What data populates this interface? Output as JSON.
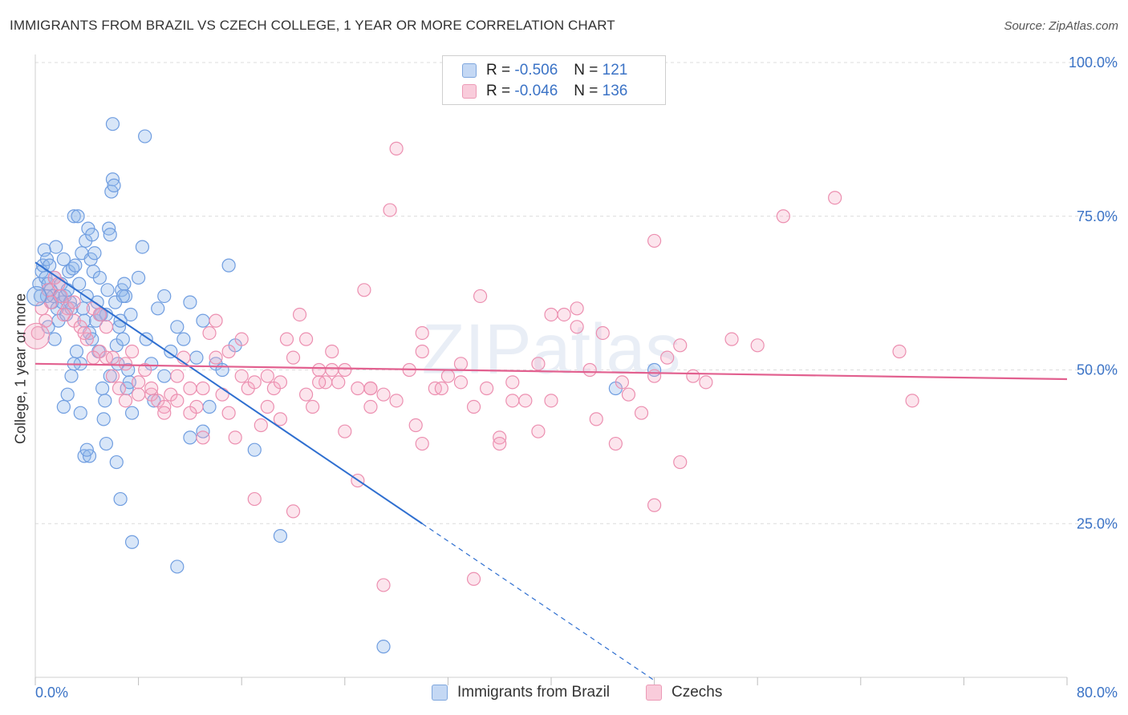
{
  "title": "IMMIGRANTS FROM BRAZIL VS CZECH COLLEGE, 1 YEAR OR MORE CORRELATION CHART",
  "source": "Source: ZipAtlas.com",
  "watermark": "ZIPatlas",
  "legend": {
    "r_label": "R =",
    "n_label": "N =",
    "rows": [
      {
        "r": "-0.506",
        "n": "121"
      },
      {
        "r": "-0.046",
        "n": "136"
      }
    ]
  },
  "chart_data": {
    "type": "scatter",
    "title": "IMMIGRANTS FROM BRAZIL VS CZECH COLLEGE, 1 YEAR OR MORE CORRELATION CHART",
    "xlabel": "",
    "ylabel": "College, 1 year or more",
    "xlim": [
      0,
      80
    ],
    "ylim": [
      0,
      100
    ],
    "x_tick_labels": [
      "0.0%",
      "80.0%"
    ],
    "y_tick_labels": [
      "100.0%",
      "75.0%",
      "50.0%",
      "25.0%"
    ],
    "y_ticks": [
      100,
      75,
      50,
      25
    ],
    "grid": true,
    "legend_position": "top-center",
    "series": [
      {
        "name": "Immigrants from Brazil",
        "color": "#8fb6ea",
        "line_color": "#2f6fd0",
        "trend": {
          "x0": 0,
          "y0": 67.5,
          "x1": 30,
          "y1": 25,
          "dash_to_x": 48
        },
        "points": [
          [
            0.3,
            64
          ],
          [
            0.4,
            62
          ],
          [
            0.5,
            66
          ],
          [
            0.6,
            67
          ],
          [
            0.7,
            69.5
          ],
          [
            0.8,
            65
          ],
          [
            0.9,
            68
          ],
          [
            1.0,
            64
          ],
          [
            1.1,
            67
          ],
          [
            1.2,
            63
          ],
          [
            1.3,
            61
          ],
          [
            1.4,
            62
          ],
          [
            1.5,
            65
          ],
          [
            1.6,
            70
          ],
          [
            1.7,
            60
          ],
          [
            1.8,
            58
          ],
          [
            1.9,
            62
          ],
          [
            2.0,
            64
          ],
          [
            2.1,
            61
          ],
          [
            2.2,
            68
          ],
          [
            2.3,
            62
          ],
          [
            2.4,
            59
          ],
          [
            2.5,
            63
          ],
          [
            2.6,
            66
          ],
          [
            2.7,
            61
          ],
          [
            2.8,
            60
          ],
          [
            2.9,
            66.5
          ],
          [
            3.0,
            75
          ],
          [
            3.1,
            67
          ],
          [
            3.2,
            53
          ],
          [
            3.3,
            75
          ],
          [
            3.4,
            64
          ],
          [
            3.5,
            51
          ],
          [
            3.6,
            69
          ],
          [
            3.7,
            60
          ],
          [
            3.8,
            58
          ],
          [
            3.9,
            71
          ],
          [
            4.0,
            62
          ],
          [
            4.1,
            73
          ],
          [
            4.2,
            56
          ],
          [
            4.3,
            68
          ],
          [
            4.4,
            72
          ],
          [
            4.5,
            66
          ],
          [
            4.6,
            69
          ],
          [
            4.7,
            58
          ],
          [
            4.8,
            61
          ],
          [
            4.9,
            53
          ],
          [
            5.0,
            65
          ],
          [
            5.1,
            59
          ],
          [
            5.2,
            47
          ],
          [
            5.3,
            42
          ],
          [
            5.4,
            45
          ],
          [
            5.5,
            59
          ],
          [
            5.6,
            63
          ],
          [
            5.7,
            73
          ],
          [
            5.8,
            72
          ],
          [
            5.9,
            79
          ],
          [
            6.0,
            81
          ],
          [
            6.1,
            80
          ],
          [
            6.2,
            61
          ],
          [
            6.3,
            54
          ],
          [
            6.4,
            51
          ],
          [
            6.5,
            57
          ],
          [
            6.6,
            58
          ],
          [
            6.7,
            63
          ],
          [
            6.8,
            55
          ],
          [
            6.9,
            64
          ],
          [
            7.0,
            62
          ],
          [
            7.1,
            47
          ],
          [
            7.2,
            50
          ],
          [
            7.3,
            48
          ],
          [
            7.4,
            59
          ],
          [
            7.5,
            43
          ],
          [
            8.0,
            65
          ],
          [
            8.3,
            70
          ],
          [
            8.6,
            55
          ],
          [
            9.0,
            51
          ],
          [
            9.2,
            45
          ],
          [
            9.5,
            60
          ],
          [
            10.0,
            62
          ],
          [
            10.5,
            53
          ],
          [
            11.0,
            57
          ],
          [
            11.5,
            55
          ],
          [
            12.0,
            61
          ],
          [
            12.5,
            52
          ],
          [
            13.0,
            58
          ],
          [
            13.5,
            44
          ],
          [
            14.0,
            51
          ],
          [
            14.5,
            50
          ],
          [
            15.0,
            67
          ],
          [
            15.5,
            54
          ],
          [
            8.5,
            88
          ],
          [
            6.0,
            90
          ],
          [
            7.5,
            22
          ],
          [
            11.0,
            18
          ],
          [
            13.0,
            40
          ],
          [
            17.0,
            37
          ],
          [
            19.0,
            23
          ],
          [
            27.0,
            5
          ],
          [
            2.5,
            46
          ],
          [
            3.8,
            36
          ],
          [
            4.2,
            36
          ],
          [
            4.0,
            37
          ],
          [
            5.5,
            38
          ],
          [
            6.3,
            35
          ],
          [
            6.6,
            29
          ],
          [
            1.0,
            57
          ],
          [
            2.2,
            44
          ],
          [
            3.0,
            51
          ],
          [
            5.0,
            59
          ],
          [
            6.8,
            62
          ],
          [
            4.4,
            55
          ],
          [
            5.8,
            49
          ],
          [
            3.5,
            43
          ],
          [
            2.8,
            49
          ],
          [
            1.5,
            55
          ],
          [
            0.9,
            62
          ],
          [
            45.0,
            47
          ],
          [
            48.0,
            50
          ],
          [
            10.0,
            49
          ],
          [
            12.0,
            39
          ]
        ]
      },
      {
        "name": "Czechs",
        "color": "#f4a9c2",
        "line_color": "#e2608f",
        "trend": {
          "x0": 0,
          "y0": 51,
          "x1": 80,
          "y1": 48.5
        },
        "points": [
          [
            0.2,
            56
          ],
          [
            0.5,
            60
          ],
          [
            1.0,
            63
          ],
          [
            1.5,
            65
          ],
          [
            2.0,
            62
          ],
          [
            2.5,
            60
          ],
          [
            3.0,
            58
          ],
          [
            3.5,
            57
          ],
          [
            4.0,
            55
          ],
          [
            4.5,
            60
          ],
          [
            5.0,
            53
          ],
          [
            5.5,
            52
          ],
          [
            6.0,
            49
          ],
          [
            6.5,
            47
          ],
          [
            7.0,
            51
          ],
          [
            7.5,
            53
          ],
          [
            8.0,
            48
          ],
          [
            8.5,
            50
          ],
          [
            9.0,
            46
          ],
          [
            9.5,
            45
          ],
          [
            10.0,
            44
          ],
          [
            10.5,
            46
          ],
          [
            11.0,
            49
          ],
          [
            11.5,
            52
          ],
          [
            12.0,
            47
          ],
          [
            12.5,
            44
          ],
          [
            13.0,
            39
          ],
          [
            13.5,
            56
          ],
          [
            14.0,
            58
          ],
          [
            14.5,
            46
          ],
          [
            15.0,
            43
          ],
          [
            15.5,
            39
          ],
          [
            16.0,
            55
          ],
          [
            16.5,
            47
          ],
          [
            17.0,
            48
          ],
          [
            17.5,
            41
          ],
          [
            18.0,
            49
          ],
          [
            18.5,
            47
          ],
          [
            19.0,
            42
          ],
          [
            19.5,
            55
          ],
          [
            20.0,
            52
          ],
          [
            20.5,
            59
          ],
          [
            21.0,
            55
          ],
          [
            21.5,
            44
          ],
          [
            22.0,
            50
          ],
          [
            22.5,
            48
          ],
          [
            23.0,
            53
          ],
          [
            23.5,
            48
          ],
          [
            24.0,
            50
          ],
          [
            25.0,
            47
          ],
          [
            26.0,
            44
          ],
          [
            27.0,
            46
          ],
          [
            28.0,
            45
          ],
          [
            29.0,
            50
          ],
          [
            30.0,
            56
          ],
          [
            31.0,
            47
          ],
          [
            32.0,
            49
          ],
          [
            33.0,
            51
          ],
          [
            34.0,
            44
          ],
          [
            35.0,
            47
          ],
          [
            36.0,
            39
          ],
          [
            37.0,
            48
          ],
          [
            38.0,
            45
          ],
          [
            39.0,
            40
          ],
          [
            40.0,
            45
          ],
          [
            41.0,
            59
          ],
          [
            42.0,
            57
          ],
          [
            43.0,
            50
          ],
          [
            44.0,
            56
          ],
          [
            45.0,
            38
          ],
          [
            46.0,
            46
          ],
          [
            47.0,
            43
          ],
          [
            48.0,
            49
          ],
          [
            49.0,
            52
          ],
          [
            50.0,
            54
          ],
          [
            51.0,
            49
          ],
          [
            52.0,
            48
          ],
          [
            54.0,
            55
          ],
          [
            56.0,
            54
          ],
          [
            58.0,
            75
          ],
          [
            62.0,
            78
          ],
          [
            67.0,
            53
          ],
          [
            68.0,
            45
          ],
          [
            28.0,
            86
          ],
          [
            27.5,
            76
          ],
          [
            34.5,
            62
          ],
          [
            25.5,
            63
          ],
          [
            30.0,
            38
          ],
          [
            36.0,
            38
          ],
          [
            20.0,
            27
          ],
          [
            17.0,
            29
          ],
          [
            27.0,
            15
          ],
          [
            34.0,
            16
          ],
          [
            48.0,
            71
          ],
          [
            50.0,
            35
          ],
          [
            48.0,
            28
          ],
          [
            42.0,
            60
          ],
          [
            33.0,
            48
          ],
          [
            37.0,
            45
          ],
          [
            30.0,
            53
          ],
          [
            29.5,
            41
          ],
          [
            26.0,
            47
          ],
          [
            23.0,
            50
          ],
          [
            22.0,
            48
          ],
          [
            19.0,
            48
          ],
          [
            18.0,
            44
          ],
          [
            16.0,
            49
          ],
          [
            15.0,
            53
          ],
          [
            14.0,
            52
          ],
          [
            13.0,
            47
          ],
          [
            12.0,
            43
          ],
          [
            11.0,
            45
          ],
          [
            10.0,
            43
          ],
          [
            9.0,
            47
          ],
          [
            8.0,
            46
          ],
          [
            7.0,
            45
          ],
          [
            6.0,
            52
          ],
          [
            5.5,
            57
          ],
          [
            5.0,
            59
          ],
          [
            4.5,
            52
          ],
          [
            3.8,
            56
          ],
          [
            3.0,
            61
          ],
          [
            2.2,
            59
          ],
          [
            1.8,
            64
          ],
          [
            1.2,
            61
          ],
          [
            0.8,
            58
          ],
          [
            24.0,
            40
          ],
          [
            25.0,
            32
          ],
          [
            31.5,
            47
          ],
          [
            43.5,
            42
          ],
          [
            45.5,
            48
          ],
          [
            40.0,
            59
          ],
          [
            39.0,
            51
          ],
          [
            26.0,
            47
          ],
          [
            21.0,
            46
          ]
        ]
      }
    ]
  },
  "bottom_legend": [
    "Immigrants from Brazil",
    "Czechs"
  ]
}
